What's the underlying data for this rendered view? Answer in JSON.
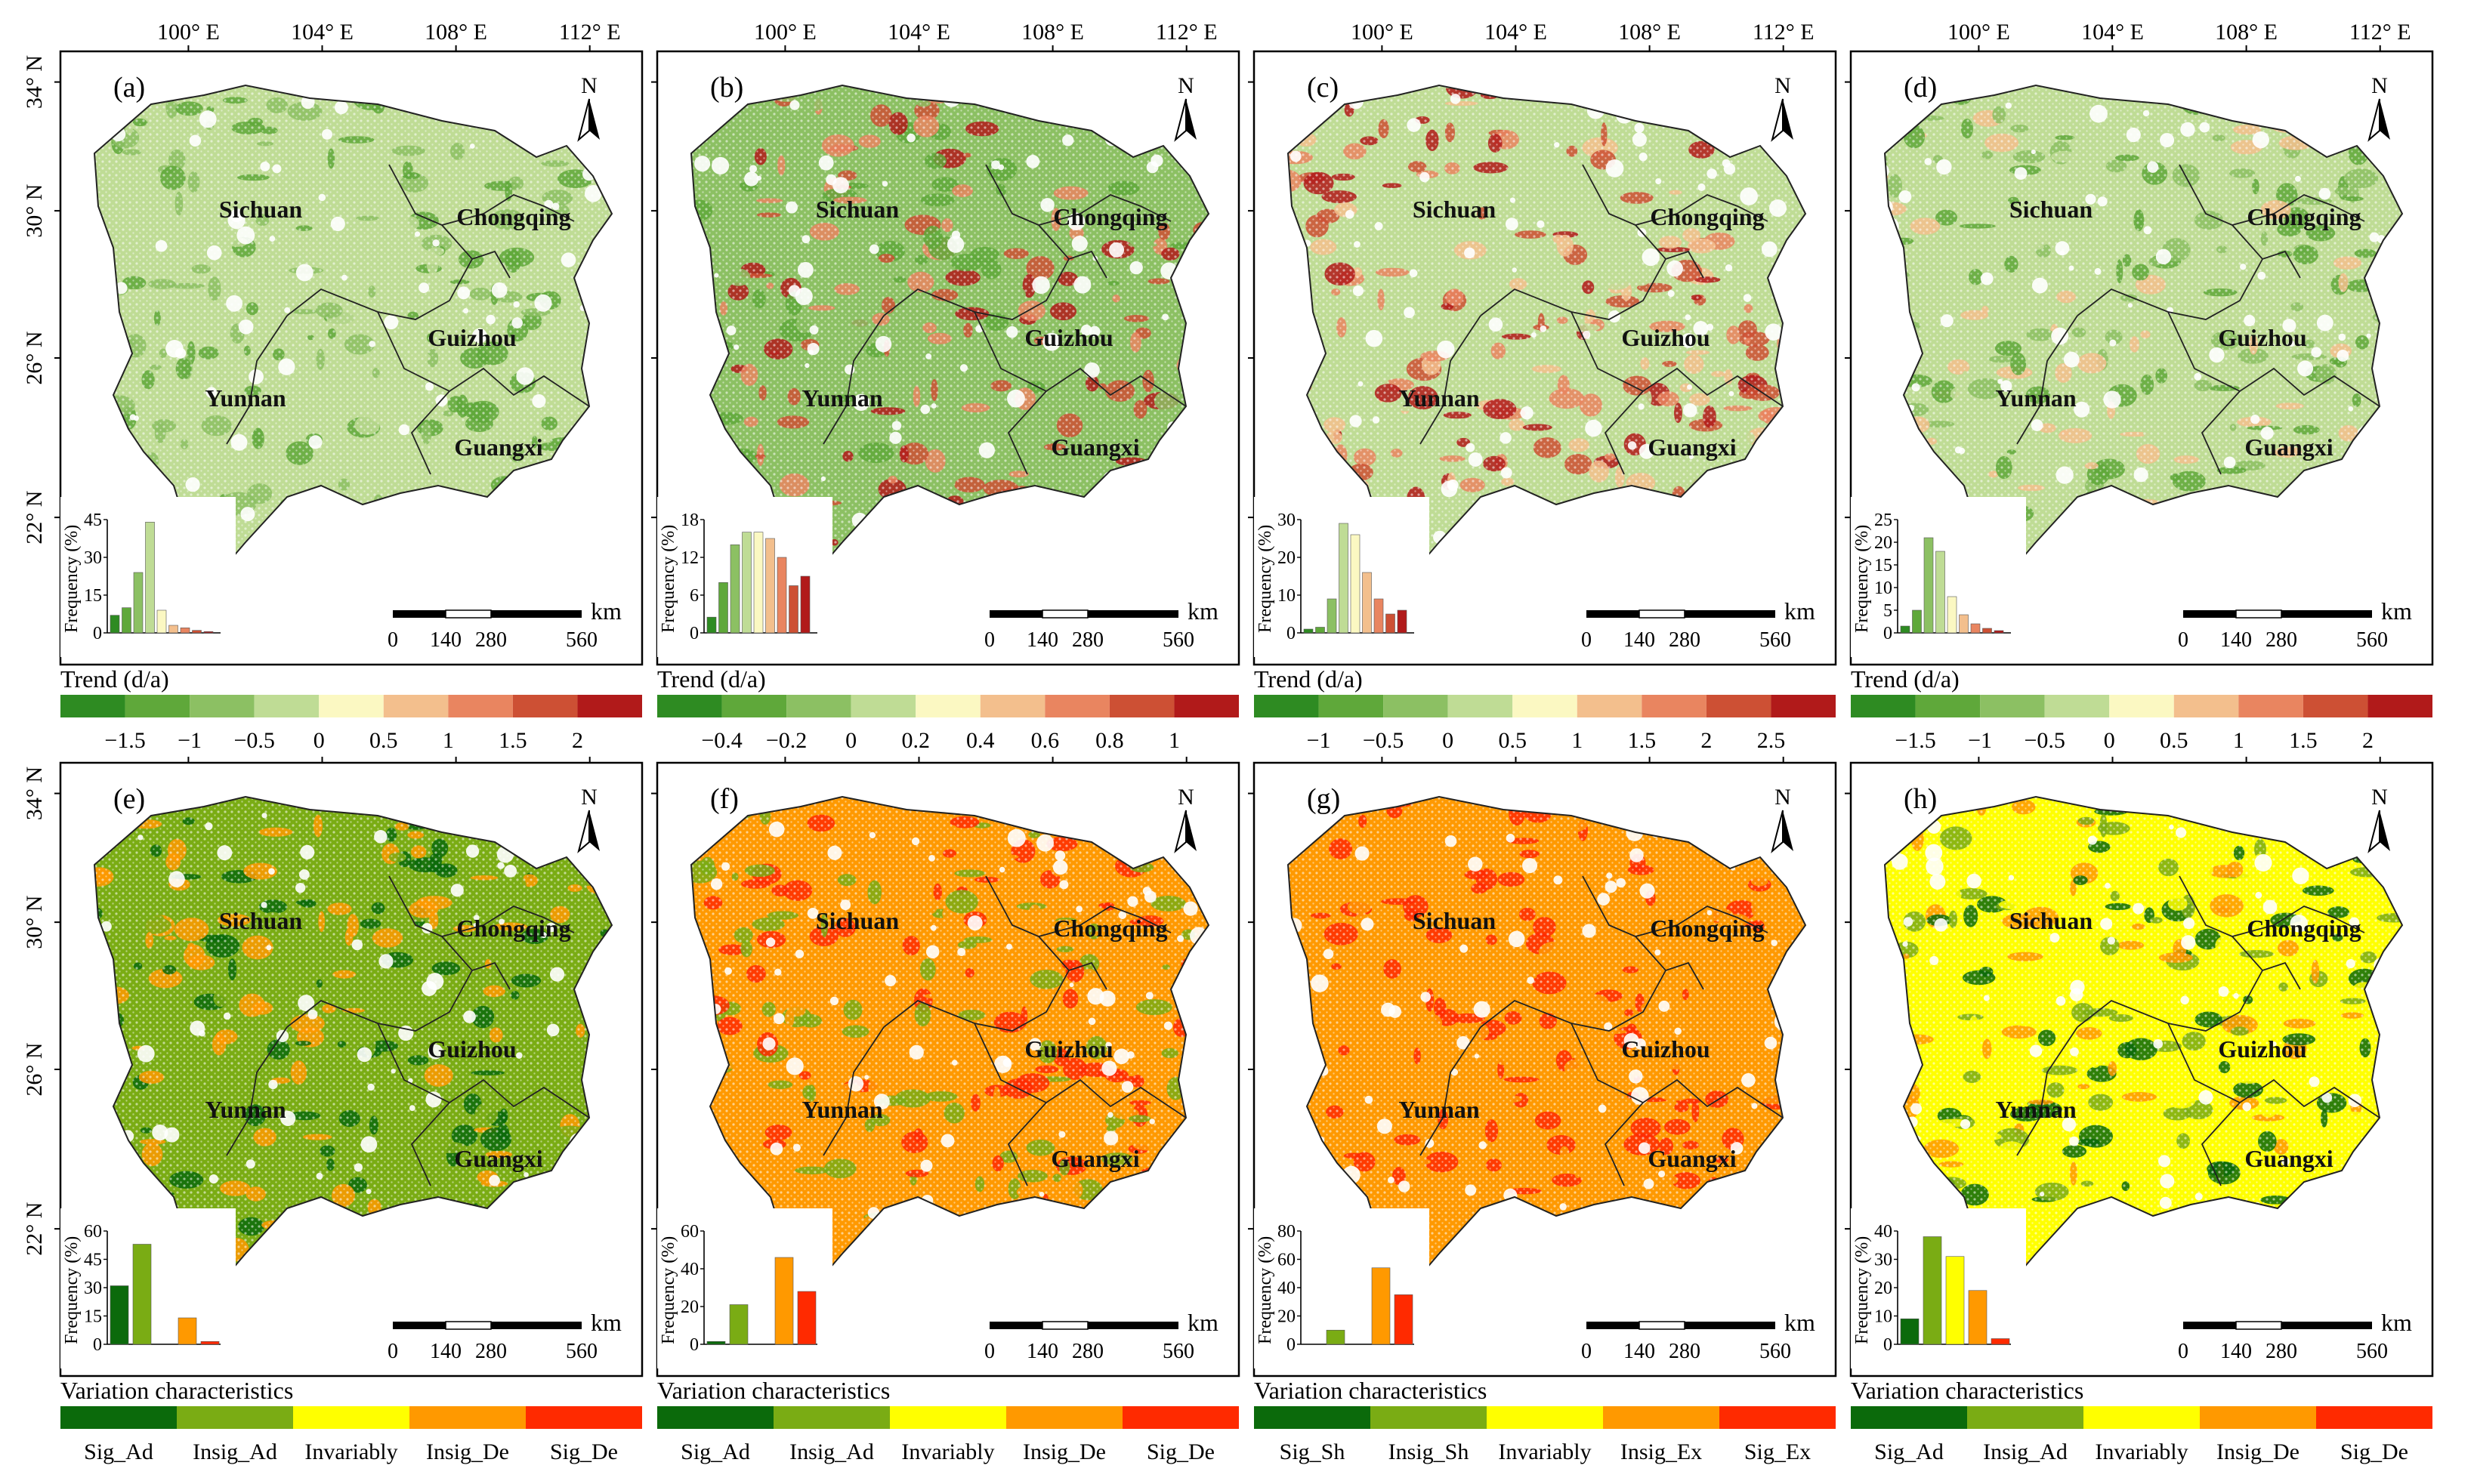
{
  "longitude_labels": [
    "100° E",
    "104° E",
    "108° E",
    "112° E"
  ],
  "latitude_labels": [
    "34° N",
    "30° N",
    "26° N",
    "22° N"
  ],
  "regions": [
    "Sichuan",
    "Chongqing",
    "Guizhou",
    "Yunnan",
    "Guangxi"
  ],
  "north_label": "N",
  "scale_bar": {
    "unit": "km",
    "ticks": [
      "0",
      "140",
      "280",
      "560"
    ]
  },
  "hist_ylabel": "Frequency (%)",
  "colors": {
    "trend": [
      "#2e8b22",
      "#5fa83a",
      "#8cc063",
      "#bfdc95",
      "#fbf8c2",
      "#f3bf8d",
      "#e98560",
      "#cd5034",
      "#b11a1a"
    ],
    "variation": [
      "#0b6a0b",
      "#7aac14",
      "#ffff00",
      "#ff9900",
      "#ff2a00"
    ]
  },
  "panels": [
    {
      "label": "(a)",
      "legend_title": "Trend (d/a)",
      "legend_type": "trend",
      "legend_ticks": [
        "−1.5",
        "−1",
        "−0.5",
        "0",
        "0.5",
        "1",
        "1.5",
        "2"
      ],
      "hist": {
        "yticks": [
          "0",
          "15",
          "30",
          "45"
        ],
        "ymax": 45,
        "values": [
          7,
          10,
          24,
          44,
          9,
          3,
          2,
          1,
          0.5
        ]
      }
    },
    {
      "label": "(b)",
      "legend_title": "Trend (d/a)",
      "legend_type": "trend",
      "legend_ticks": [
        "−0.4",
        "−0.2",
        "0",
        "0.2",
        "0.4",
        "0.6",
        "0.8",
        "1"
      ],
      "hist": {
        "yticks": [
          "0",
          "6",
          "12",
          "18"
        ],
        "ymax": 18,
        "values": [
          2.5,
          8,
          14,
          16,
          16,
          15,
          12,
          7.5,
          9
        ]
      }
    },
    {
      "label": "(c)",
      "legend_title": "Trend (d/a)",
      "legend_type": "trend",
      "legend_ticks": [
        "−1",
        "−0.5",
        "0",
        "0.5",
        "1",
        "1.5",
        "2",
        "2.5"
      ],
      "hist": {
        "yticks": [
          "0",
          "10",
          "20",
          "30"
        ],
        "ymax": 30,
        "values": [
          1,
          1.5,
          9,
          29,
          26,
          16,
          9,
          5,
          6
        ]
      }
    },
    {
      "label": "(d)",
      "legend_title": "Trend (d/a)",
      "legend_type": "trend",
      "legend_ticks": [
        "−1.5",
        "−1",
        "−0.5",
        "0",
        "0.5",
        "1",
        "1.5",
        "2"
      ],
      "hist": {
        "yticks": [
          "0",
          "5",
          "10",
          "15",
          "20",
          "25"
        ],
        "ymax": 25,
        "values": [
          1.5,
          5,
          21,
          18,
          8,
          4,
          2,
          1,
          0.5
        ]
      }
    },
    {
      "label": "(e)",
      "legend_title": "Variation characteristics",
      "legend_type": "variation",
      "legend_categories": [
        "Sig_Ad",
        "Insig_Ad",
        "Invariably",
        "Insig_De",
        "Sig_De"
      ],
      "hist": {
        "yticks": [
          "0",
          "15",
          "30",
          "45",
          "60"
        ],
        "ymax": 60,
        "values": [
          31,
          53,
          0,
          14,
          1.5
        ]
      }
    },
    {
      "label": "(f)",
      "legend_title": "Variation characteristics",
      "legend_type": "variation",
      "legend_categories": [
        "Sig_Ad",
        "Insig_Ad",
        "Invariably",
        "Insig_De",
        "Sig_De"
      ],
      "hist": {
        "yticks": [
          "0",
          "20",
          "40",
          "60"
        ],
        "ymax": 60,
        "values": [
          1.5,
          21,
          0,
          46,
          28
        ]
      }
    },
    {
      "label": "(g)",
      "legend_title": "Variation characteristics",
      "legend_type": "variation",
      "legend_categories": [
        "Sig_Sh",
        "Insig_Sh",
        "Invariably",
        "Insig_Ex",
        "Sig_Ex"
      ],
      "hist": {
        "yticks": [
          "0",
          "20",
          "40",
          "60",
          "80"
        ],
        "ymax": 80,
        "values": [
          0,
          10,
          0,
          54,
          35
        ]
      }
    },
    {
      "label": "(h)",
      "legend_title": "Variation characteristics",
      "legend_type": "variation",
      "legend_categories": [
        "Sig_Ad",
        "Insig_Ad",
        "Invariably",
        "Insig_De",
        "Sig_De"
      ],
      "hist": {
        "yticks": [
          "0",
          "10",
          "20",
          "30",
          "40"
        ],
        "ymax": 40,
        "values": [
          9,
          38,
          31,
          19,
          2
        ]
      }
    }
  ]
}
